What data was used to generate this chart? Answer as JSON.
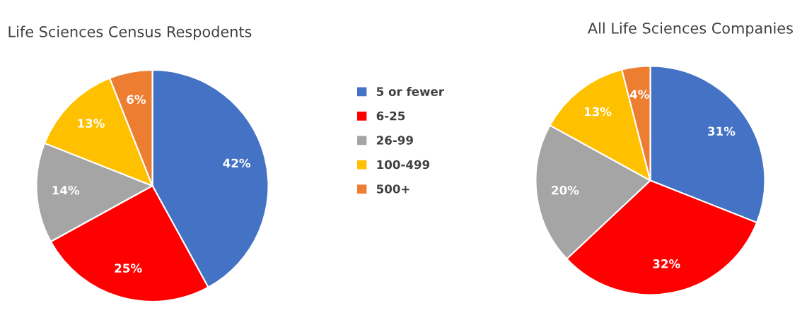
{
  "chart_data": [
    {
      "type": "pie",
      "title": "Life Sciences Census Respodents",
      "categories": [
        "5 or fewer",
        "6-25",
        "26-99",
        "100-499",
        "500+"
      ],
      "values": [
        42,
        25,
        14,
        13,
        6
      ],
      "value_labels": [
        "42%",
        "25%",
        "14%",
        "13%",
        "6%"
      ],
      "colors": [
        "#4472c4",
        "#ff0000",
        "#a5a5a5",
        "#ffc000",
        "#ed7d31"
      ],
      "legend": "right"
    },
    {
      "type": "pie",
      "title": "All Life Sciences Companies",
      "categories": [
        null,
        null,
        null,
        null,
        null
      ],
      "values": [
        31,
        32,
        20,
        13,
        4
      ],
      "value_labels": [
        "31%",
        "32%",
        "20%",
        "13%",
        "4%"
      ],
      "colors": [
        "#4472c4",
        "#ff0000",
        "#a5a5a5",
        "#ffc000",
        "#ed7d31"
      ]
    }
  ]
}
